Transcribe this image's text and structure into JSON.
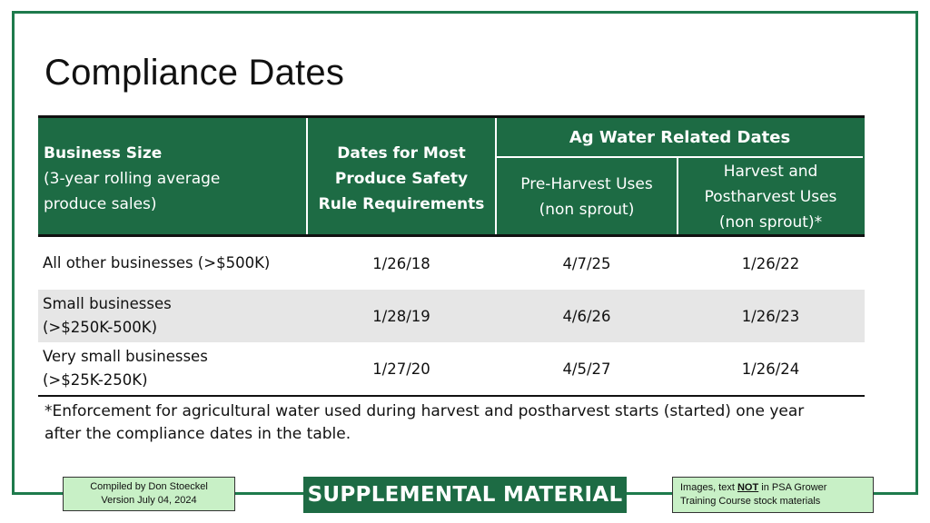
{
  "title": "Compliance Dates",
  "table": {
    "header": {
      "business_size_bold": "Business Size",
      "business_size_line2": "(3-year rolling average",
      "business_size_line3": "produce sales)",
      "most_dates_l1": "Dates for Most",
      "most_dates_l2": "Produce Safety",
      "most_dates_l3": "Rule Requirements",
      "ag_water": "Ag Water Related Dates",
      "pre_harvest_l1": "Pre-Harvest Uses",
      "pre_harvest_l2": "(non sprout)",
      "harvest_l1": "Harvest and",
      "harvest_l2": "Postharvest Uses",
      "harvest_l3": "(non sprout)*"
    },
    "rows": [
      {
        "size_l1": "All other businesses (>$500K)",
        "size_l2": "",
        "most": "1/26/18",
        "pre": "4/7/25",
        "harvest": "1/26/22"
      },
      {
        "size_l1": "Small businesses",
        "size_l2": "(>$250K-500K)",
        "most": "1/28/19",
        "pre": "4/6/26",
        "harvest": "1/26/23"
      },
      {
        "size_l1": "Very small businesses",
        "size_l2": "(>$25K-250K)",
        "most": "1/27/20",
        "pre": "4/5/27",
        "harvest": "1/26/24"
      }
    ]
  },
  "footnote_l1": "*Enforcement for agricultural water used during harvest and postharvest starts (started) one year",
  "footnote_l2": "after the compliance dates in the table.",
  "footer": {
    "left_l1": "Compiled by Don Stoeckel",
    "left_l2": "Version July 04, 2024",
    "center": "SUPPLEMENTAL MATERIAL",
    "right_pre": "Images, text ",
    "right_not": "NOT",
    "right_post": " in PSA Grower",
    "right_l2": "Training Course stock materials"
  },
  "colors": {
    "brand_green": "#1d6b44",
    "frame_green": "#1e7a4c",
    "note_box_green": "#c8f0c6",
    "row_shade": "#e6e6e6"
  }
}
